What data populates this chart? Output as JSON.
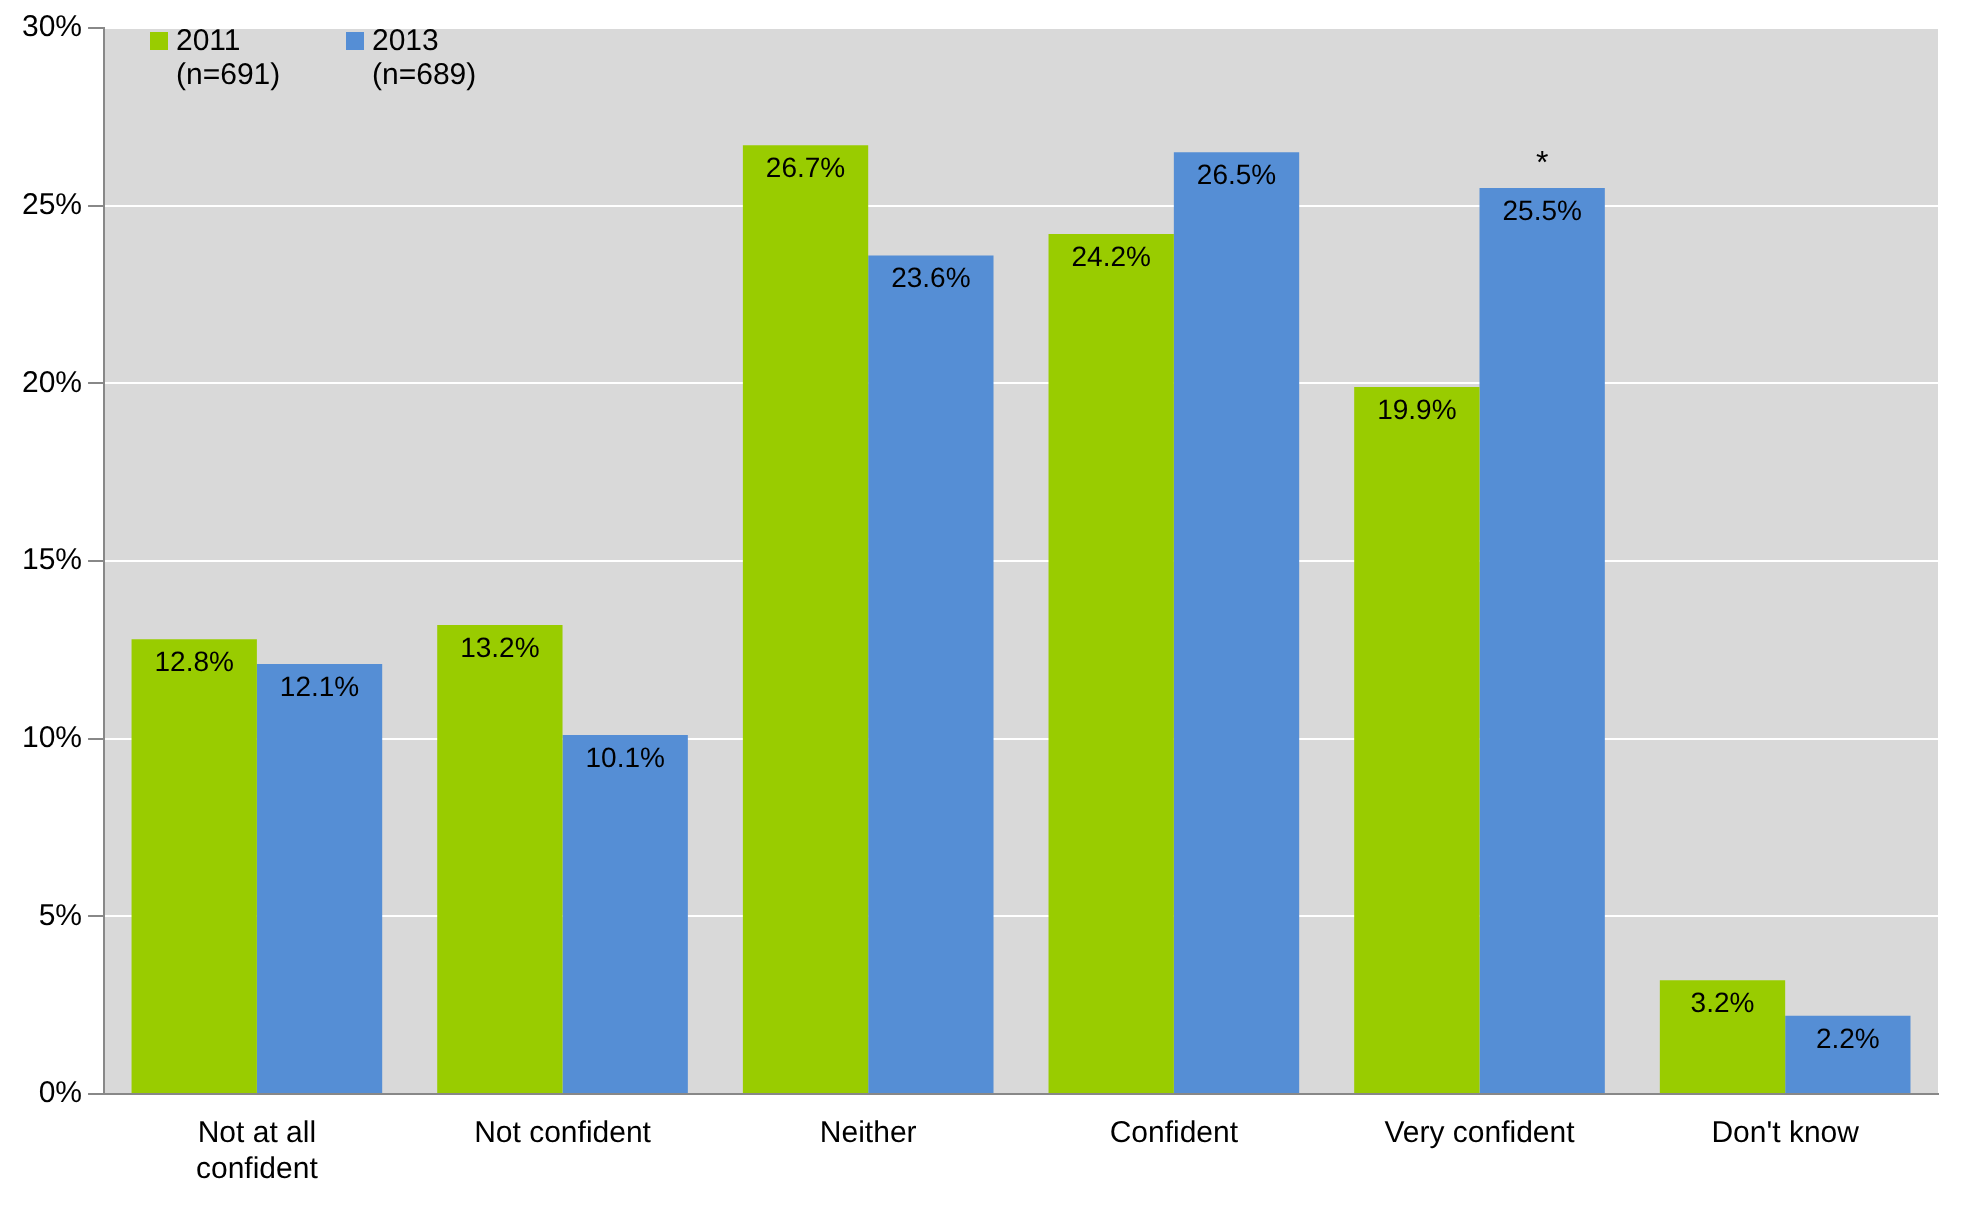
{
  "chart_data": {
    "type": "bar",
    "categories": [
      "Not at all confident",
      "Not confident",
      "Neither",
      "Confident",
      "Very confident",
      "Don't know"
    ],
    "series": [
      {
        "name": "2011 (n=691)",
        "color": "#99cc00",
        "values": [
          12.8,
          13.2,
          26.7,
          24.2,
          19.9,
          3.2
        ],
        "value_labels": [
          "12.8%",
          "13.2%",
          "26.7%",
          "24.2%",
          "19.9%",
          "3.2%"
        ]
      },
      {
        "name": "2013 (n=689)",
        "color": "#558ed5",
        "values": [
          12.1,
          10.1,
          23.6,
          26.5,
          25.5,
          2.2
        ],
        "value_labels": [
          "12.1%",
          "10.1%",
          "23.6%",
          "26.5%",
          "25.5%",
          "2.2%"
        ]
      }
    ],
    "ylim": [
      0,
      30
    ],
    "yticks": [
      {
        "value": 0,
        "label": "0%"
      },
      {
        "value": 5,
        "label": "5%"
      },
      {
        "value": 10,
        "label": "10%"
      },
      {
        "value": 15,
        "label": "15%"
      },
      {
        "value": 20,
        "label": "20%"
      },
      {
        "value": 25,
        "label": "25%"
      },
      {
        "value": 30,
        "label": "30%"
      }
    ],
    "grid": "y",
    "legend": "top left",
    "annotations": [
      {
        "text": "*",
        "x": "Very confident",
        "y": 25.5
      }
    ]
  }
}
